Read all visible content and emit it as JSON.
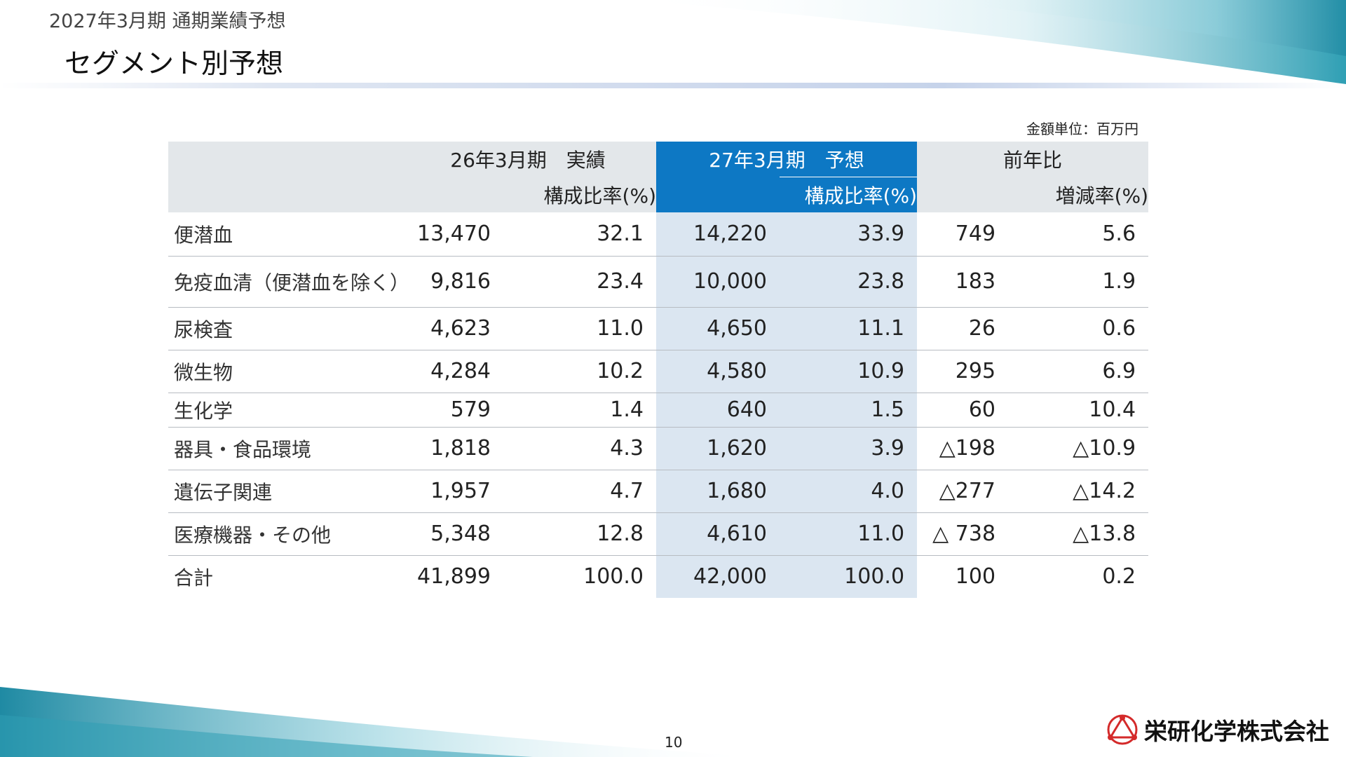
{
  "header": {
    "subtitle": "2027年3月期 通期業績予想",
    "title": "セグメント別予想"
  },
  "unit_label": "金額単位：百万円",
  "table": {
    "headers": {
      "actual": "26年3月期　実績",
      "forecast": "27年3月期　予想",
      "yoy": "前年比",
      "composition": "構成比率(%)",
      "change_rate": "増減率(%)"
    },
    "rows": [
      {
        "segment": "便潜血",
        "actual": "13,470",
        "actual_pct": "32.1",
        "forecast": "14,220",
        "forecast_pct": "33.9",
        "diff": "749",
        "rate": "5.6"
      },
      {
        "segment": "免疫血清（便潜血を除く）",
        "actual": "9,816",
        "actual_pct": "23.4",
        "forecast": "10,000",
        "forecast_pct": "23.8",
        "diff": "183",
        "rate": "1.9"
      },
      {
        "segment": "尿検査",
        "actual": "4,623",
        "actual_pct": "11.0",
        "forecast": "4,650",
        "forecast_pct": "11.1",
        "diff": "26",
        "rate": "0.6"
      },
      {
        "segment": "微生物",
        "actual": "4,284",
        "actual_pct": "10.2",
        "forecast": "4,580",
        "forecast_pct": "10.9",
        "diff": "295",
        "rate": "6.9"
      },
      {
        "segment": "生化学",
        "actual": "579",
        "actual_pct": "1.4",
        "forecast": "640",
        "forecast_pct": "1.5",
        "diff": "60",
        "rate": "10.4"
      },
      {
        "segment": "器具・食品環境",
        "actual": "1,818",
        "actual_pct": "4.3",
        "forecast": "1,620",
        "forecast_pct": "3.9",
        "diff": "△198",
        "rate": "△10.9"
      },
      {
        "segment": "遺伝子関連",
        "actual": "1,957",
        "actual_pct": "4.7",
        "forecast": "1,680",
        "forecast_pct": "4.0",
        "diff": "△277",
        "rate": "△14.2"
      },
      {
        "segment": "医療機器・その他",
        "actual": "5,348",
        "actual_pct": "12.8",
        "forecast": "4,610",
        "forecast_pct": "11.0",
        "diff": "△ 738",
        "rate": "△13.8"
      },
      {
        "segment": "合計",
        "actual": "41,899",
        "actual_pct": "100.0",
        "forecast": "42,000",
        "forecast_pct": "100.0",
        "diff": "100",
        "rate": "0.2"
      }
    ]
  },
  "page_number": "10",
  "company": "栄研化学株式会社",
  "colors": {
    "accent_blue": "#0d78c4",
    "forecast_band": "#dbe6f1",
    "header_gray": "#e3e7ea",
    "logo_red": "#d42a2a",
    "wave_teal": "#2f9fb4"
  },
  "icons": {
    "logo": "eiken-triangle-logo-icon"
  }
}
